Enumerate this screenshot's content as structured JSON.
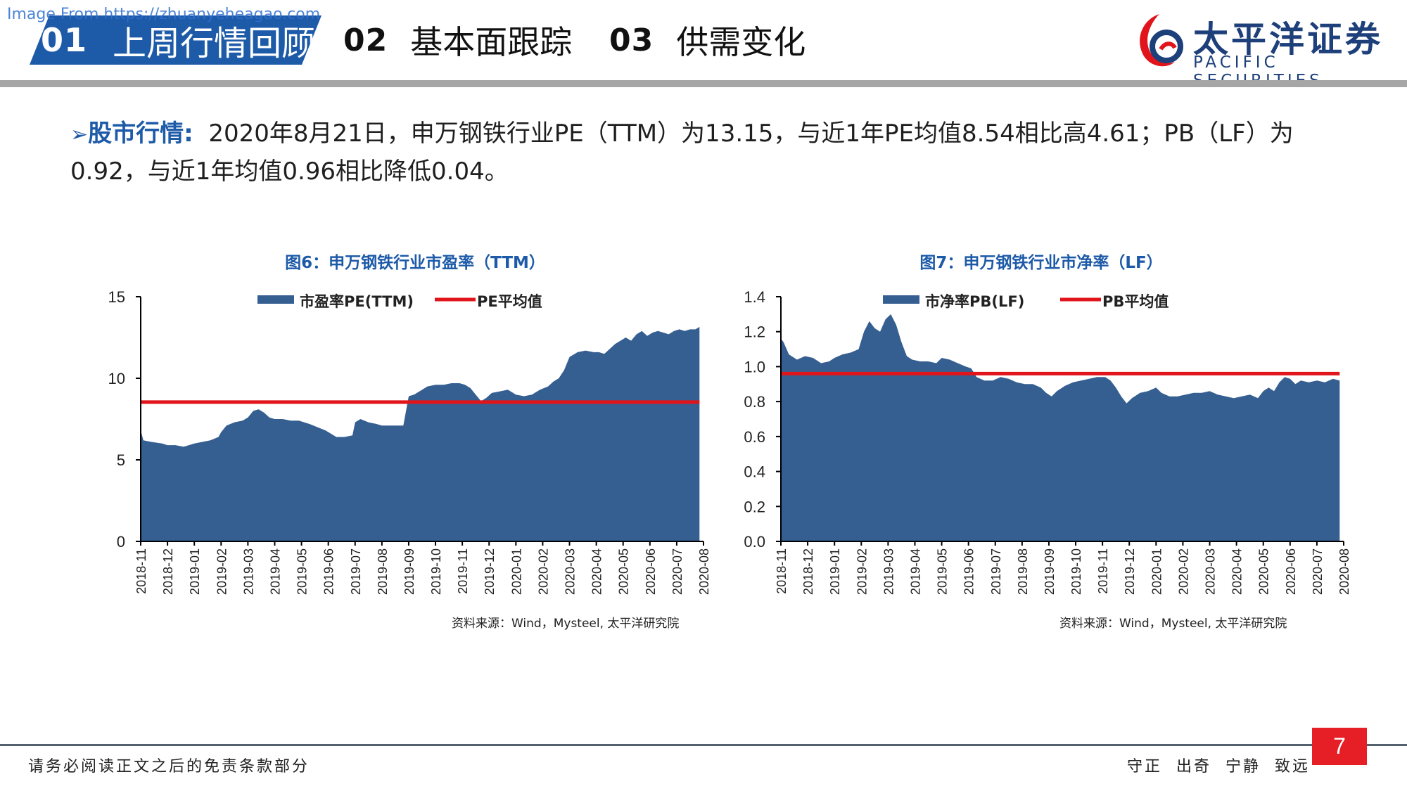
{
  "watermark": "Image From https://zhuanyeheagao.com",
  "nav": {
    "tabs": [
      {
        "num": "01",
        "label": "上周行情回顾"
      },
      {
        "num": "02",
        "label": "基本面跟踪"
      },
      {
        "num": "03",
        "label": "供需变化"
      }
    ]
  },
  "logo": {
    "cn": "太平洋证券",
    "en": "PACIFIC SECURITIES"
  },
  "bullet": {
    "arrow": "➢",
    "label": "股市行情:",
    "text": "2020年8月21日，申万钢铁行业PE（TTM）为13.15，与近1年PE均值8.54相比高4.61；PB（LF）为0.92，与近1年均值0.96相比降低0.04。"
  },
  "colors": {
    "area": "#365f91",
    "mean_line": "#e0141a",
    "brand": "#1d5aa8",
    "page_box": "#e61e25"
  },
  "chart_data": [
    {
      "type": "area",
      "title": "图6：申万钢铁行业市盈率（TTM）",
      "legend": [
        "市盈率PE(TTM)",
        "PE平均值"
      ],
      "legend_position": "top",
      "x": [
        "2018-11",
        "2018-12",
        "2019-01",
        "2019-02",
        "2019-03",
        "2019-04",
        "2019-05",
        "2019-06",
        "2019-07",
        "2019-08",
        "2019-09",
        "2019-10",
        "2019-11",
        "2019-12",
        "2020-01",
        "2020-02",
        "2020-03",
        "2020-04",
        "2020-05",
        "2020-06",
        "2020-07",
        "2020-08"
      ],
      "yticks": [
        "0",
        "5",
        "10",
        "15"
      ],
      "ylim": [
        0,
        15
      ],
      "series": [
        {
          "name": "市盈率PE(TTM)",
          "kind": "area",
          "points": [
            [
              0,
              6.8
            ],
            [
              0.1,
              6.2
            ],
            [
              0.4,
              6.1
            ],
            [
              0.8,
              6.0
            ],
            [
              1.0,
              5.9
            ],
            [
              1.3,
              5.9
            ],
            [
              1.6,
              5.8
            ],
            [
              1.8,
              5.9
            ],
            [
              2.0,
              6.0
            ],
            [
              2.3,
              6.1
            ],
            [
              2.6,
              6.2
            ],
            [
              2.9,
              6.4
            ],
            [
              3.0,
              6.7
            ],
            [
              3.2,
              7.1
            ],
            [
              3.5,
              7.3
            ],
            [
              3.8,
              7.4
            ],
            [
              4.0,
              7.6
            ],
            [
              4.2,
              8.0
            ],
            [
              4.4,
              8.1
            ],
            [
              4.6,
              7.9
            ],
            [
              4.8,
              7.6
            ],
            [
              5.0,
              7.5
            ],
            [
              5.3,
              7.5
            ],
            [
              5.6,
              7.4
            ],
            [
              5.9,
              7.4
            ],
            [
              6.1,
              7.3
            ],
            [
              6.3,
              7.2
            ],
            [
              6.6,
              7.0
            ],
            [
              6.9,
              6.8
            ],
            [
              7.1,
              6.6
            ],
            [
              7.3,
              6.4
            ],
            [
              7.6,
              6.4
            ],
            [
              7.9,
              6.5
            ],
            [
              8.0,
              7.3
            ],
            [
              8.2,
              7.5
            ],
            [
              8.5,
              7.3
            ],
            [
              8.8,
              7.2
            ],
            [
              9.0,
              7.1
            ],
            [
              9.3,
              7.1
            ],
            [
              9.6,
              7.1
            ],
            [
              9.8,
              7.1
            ],
            [
              10.0,
              8.9
            ],
            [
              10.2,
              9.0
            ],
            [
              10.4,
              9.2
            ],
            [
              10.7,
              9.5
            ],
            [
              11.0,
              9.6
            ],
            [
              11.3,
              9.6
            ],
            [
              11.6,
              9.7
            ],
            [
              11.9,
              9.7
            ],
            [
              12.1,
              9.6
            ],
            [
              12.3,
              9.4
            ],
            [
              12.5,
              9.0
            ],
            [
              12.7,
              8.6
            ],
            [
              12.9,
              8.8
            ],
            [
              13.1,
              9.1
            ],
            [
              13.4,
              9.2
            ],
            [
              13.7,
              9.3
            ],
            [
              14.0,
              9.0
            ],
            [
              14.3,
              8.9
            ],
            [
              14.6,
              9.0
            ],
            [
              14.9,
              9.3
            ],
            [
              15.2,
              9.5
            ],
            [
              15.4,
              9.8
            ],
            [
              15.6,
              10.0
            ],
            [
              15.8,
              10.5
            ],
            [
              16.0,
              11.3
            ],
            [
              16.3,
              11.6
            ],
            [
              16.6,
              11.7
            ],
            [
              16.9,
              11.6
            ],
            [
              17.1,
              11.6
            ],
            [
              17.3,
              11.5
            ],
            [
              17.5,
              11.8
            ],
            [
              17.7,
              12.1
            ],
            [
              17.9,
              12.3
            ],
            [
              18.1,
              12.5
            ],
            [
              18.3,
              12.3
            ],
            [
              18.5,
              12.7
            ],
            [
              18.7,
              12.9
            ],
            [
              18.9,
              12.6
            ],
            [
              19.1,
              12.8
            ],
            [
              19.3,
              12.9
            ],
            [
              19.5,
              12.8
            ],
            [
              19.7,
              12.7
            ],
            [
              19.9,
              12.9
            ],
            [
              20.1,
              13.0
            ],
            [
              20.3,
              12.9
            ],
            [
              20.5,
              13.0
            ],
            [
              20.7,
              13.0
            ],
            [
              20.85,
              13.15
            ]
          ]
        },
        {
          "name": "PE平均值",
          "kind": "line",
          "value": 8.54
        }
      ],
      "source": "资料来源：Wind，Mysteel, 太平洋研究院"
    },
    {
      "type": "area",
      "title": "图7：申万钢铁行业市净率（LF）",
      "legend": [
        "市净率PB(LF)",
        "PB平均值"
      ],
      "legend_position": "top",
      "x": [
        "2018-11",
        "2018-12",
        "2019-01",
        "2019-02",
        "2019-03",
        "2019-04",
        "2019-05",
        "2019-06",
        "2019-07",
        "2019-08",
        "2019-09",
        "2019-10",
        "2019-11",
        "2019-12",
        "2020-01",
        "2020-02",
        "2020-03",
        "2020-04",
        "2020-05",
        "2020-06",
        "2020-07",
        "2020-08"
      ],
      "yticks": [
        "0.0",
        "0.2",
        "0.4",
        "0.6",
        "0.8",
        "1.0",
        "1.2",
        "1.4"
      ],
      "ylim": [
        0,
        1.4
      ],
      "series": [
        {
          "name": "市净率PB(LF)",
          "kind": "area",
          "points": [
            [
              0,
              1.16
            ],
            [
              0.1,
              1.14
            ],
            [
              0.3,
              1.07
            ],
            [
              0.6,
              1.04
            ],
            [
              0.9,
              1.06
            ],
            [
              1.2,
              1.05
            ],
            [
              1.5,
              1.02
            ],
            [
              1.8,
              1.03
            ],
            [
              2.0,
              1.05
            ],
            [
              2.3,
              1.07
            ],
            [
              2.6,
              1.08
            ],
            [
              2.9,
              1.1
            ],
            [
              3.1,
              1.2
            ],
            [
              3.3,
              1.26
            ],
            [
              3.5,
              1.22
            ],
            [
              3.7,
              1.2
            ],
            [
              3.9,
              1.27
            ],
            [
              4.1,
              1.3
            ],
            [
              4.3,
              1.24
            ],
            [
              4.5,
              1.14
            ],
            [
              4.7,
              1.06
            ],
            [
              4.9,
              1.04
            ],
            [
              5.2,
              1.03
            ],
            [
              5.5,
              1.03
            ],
            [
              5.8,
              1.02
            ],
            [
              6.0,
              1.05
            ],
            [
              6.3,
              1.04
            ],
            [
              6.6,
              1.02
            ],
            [
              6.9,
              1.0
            ],
            [
              7.1,
              0.99
            ],
            [
              7.3,
              0.94
            ],
            [
              7.6,
              0.92
            ],
            [
              7.9,
              0.92
            ],
            [
              8.2,
              0.94
            ],
            [
              8.5,
              0.93
            ],
            [
              8.8,
              0.91
            ],
            [
              9.1,
              0.9
            ],
            [
              9.4,
              0.9
            ],
            [
              9.7,
              0.88
            ],
            [
              9.9,
              0.85
            ],
            [
              10.1,
              0.83
            ],
            [
              10.3,
              0.86
            ],
            [
              10.6,
              0.89
            ],
            [
              10.9,
              0.91
            ],
            [
              11.2,
              0.92
            ],
            [
              11.5,
              0.93
            ],
            [
              11.8,
              0.94
            ],
            [
              12.1,
              0.94
            ],
            [
              12.3,
              0.92
            ],
            [
              12.5,
              0.88
            ],
            [
              12.7,
              0.83
            ],
            [
              12.9,
              0.79
            ],
            [
              13.1,
              0.82
            ],
            [
              13.4,
              0.85
            ],
            [
              13.7,
              0.86
            ],
            [
              14.0,
              0.88
            ],
            [
              14.2,
              0.85
            ],
            [
              14.5,
              0.83
            ],
            [
              14.8,
              0.83
            ],
            [
              15.1,
              0.84
            ],
            [
              15.4,
              0.85
            ],
            [
              15.7,
              0.85
            ],
            [
              16.0,
              0.86
            ],
            [
              16.3,
              0.84
            ],
            [
              16.6,
              0.83
            ],
            [
              16.9,
              0.82
            ],
            [
              17.2,
              0.83
            ],
            [
              17.5,
              0.84
            ],
            [
              17.8,
              0.82
            ],
            [
              18.0,
              0.86
            ],
            [
              18.2,
              0.88
            ],
            [
              18.4,
              0.86
            ],
            [
              18.6,
              0.91
            ],
            [
              18.8,
              0.94
            ],
            [
              19.0,
              0.93
            ],
            [
              19.2,
              0.9
            ],
            [
              19.4,
              0.92
            ],
            [
              19.7,
              0.91
            ],
            [
              20.0,
              0.92
            ],
            [
              20.3,
              0.91
            ],
            [
              20.6,
              0.93
            ],
            [
              20.85,
              0.92
            ]
          ]
        },
        {
          "name": "PB平均值",
          "kind": "line",
          "value": 0.96
        }
      ],
      "source": "资料来源：Wind，Mysteel, 太平洋研究院"
    }
  ],
  "footer": {
    "disclaimer": "请务必阅读正文之后的免责条款部分",
    "motto": "守正 出奇 宁静 致远",
    "page": "7"
  }
}
